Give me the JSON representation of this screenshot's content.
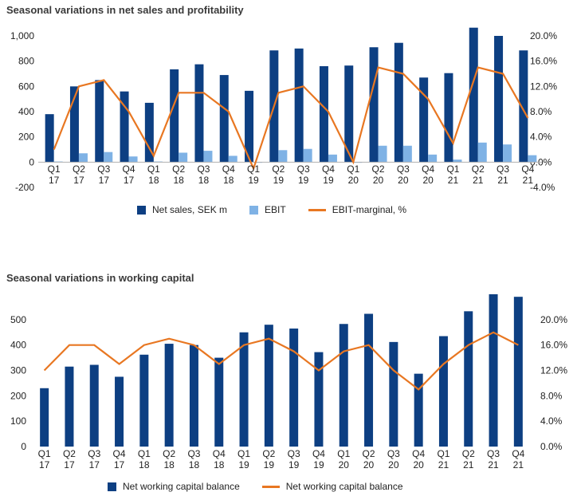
{
  "chart_data": [
    {
      "type": "bar",
      "title": "Seasonal variations in net sales and profitability",
      "categories": [
        "Q1 17",
        "Q2 17",
        "Q3 17",
        "Q4 17",
        "Q1 18",
        "Q2 18",
        "Q3 18",
        "Q4 18",
        "Q1 19",
        "Q2 19",
        "Q3 19",
        "Q4 19",
        "Q1 20",
        "Q2 20",
        "Q3 20",
        "Q4 20",
        "Q1 21",
        "Q2 21",
        "Q3 21",
        "Q4 21"
      ],
      "category_lines": [
        [
          "Q1",
          "17"
        ],
        [
          "Q2",
          "17"
        ],
        [
          "Q3",
          "17"
        ],
        [
          "Q4",
          "17"
        ],
        [
          "Q1",
          "18"
        ],
        [
          "Q2",
          "18"
        ],
        [
          "Q3",
          "18"
        ],
        [
          "Q4",
          "18"
        ],
        [
          "Q1",
          "19"
        ],
        [
          "Q2",
          "19"
        ],
        [
          "Q3",
          "19"
        ],
        [
          "Q4",
          "19"
        ],
        [
          "Q1",
          "20"
        ],
        [
          "Q2",
          "20"
        ],
        [
          "Q3",
          "20"
        ],
        [
          "Q4",
          "20"
        ],
        [
          "Q1",
          "21"
        ],
        [
          "Q2",
          "21"
        ],
        [
          "Q3",
          "21"
        ],
        [
          "Q4",
          "21"
        ]
      ],
      "series": [
        {
          "name": "Net sales, SEK m",
          "kind": "bar",
          "axis": "left",
          "color": "#0d3f82",
          "values": [
            380,
            600,
            650,
            560,
            470,
            735,
            775,
            690,
            565,
            885,
            900,
            760,
            765,
            910,
            945,
            670,
            705,
            1065,
            1000,
            885
          ]
        },
        {
          "name": "EBIT",
          "kind": "bar",
          "axis": "left",
          "color": "#7fb2e5",
          "values": [
            5,
            70,
            80,
            45,
            5,
            75,
            90,
            50,
            -5,
            95,
            105,
            60,
            0,
            130,
            130,
            60,
            20,
            155,
            140,
            55
          ]
        },
        {
          "name": "EBIT-marginal, %",
          "kind": "line",
          "axis": "right",
          "color": "#e87722",
          "values": [
            2.0,
            12.0,
            13.0,
            8.0,
            1.0,
            11.0,
            11.0,
            8.0,
            -1.0,
            11.0,
            12.0,
            8.0,
            0.0,
            15.0,
            14.0,
            10.0,
            3.0,
            15.0,
            14.0,
            7.0
          ]
        }
      ],
      "yleft": {
        "lim": [
          -200,
          1000
        ],
        "ticks": [
          -200,
          0,
          200,
          400,
          600,
          800,
          1000
        ],
        "tick_labels": [
          "-200",
          "0",
          "200",
          "400",
          "600",
          "800",
          "1,000"
        ]
      },
      "yright": {
        "lim": [
          -4,
          20
        ],
        "ticks": [
          -4,
          0,
          4,
          8,
          12,
          16,
          20
        ],
        "tick_labels": [
          "-4.0%",
          "0.0%",
          "4.0%",
          "8.0%",
          "12.0%",
          "16.0%",
          "20.0%"
        ]
      },
      "grid": false,
      "legend_position": "bottom-center"
    },
    {
      "type": "bar",
      "title": "Seasonal variations in working capital",
      "categories": [
        "Q1 17",
        "Q2 17",
        "Q3 17",
        "Q4 17",
        "Q1 18",
        "Q2 18",
        "Q3 18",
        "Q4 18",
        "Q1 19",
        "Q2 19",
        "Q3 19",
        "Q4 19",
        "Q1 20",
        "Q2 20",
        "Q3 20",
        "Q4 20",
        "Q1 21",
        "Q2 21",
        "Q3 21",
        "Q4 21"
      ],
      "category_lines": [
        [
          "Q1",
          "17"
        ],
        [
          "Q2",
          "17"
        ],
        [
          "Q3",
          "17"
        ],
        [
          "Q4",
          "17"
        ],
        [
          "Q1",
          "18"
        ],
        [
          "Q2",
          "18"
        ],
        [
          "Q3",
          "18"
        ],
        [
          "Q4",
          "18"
        ],
        [
          "Q1",
          "19"
        ],
        [
          "Q2",
          "19"
        ],
        [
          "Q3",
          "19"
        ],
        [
          "Q4",
          "19"
        ],
        [
          "Q1",
          "20"
        ],
        [
          "Q2",
          "20"
        ],
        [
          "Q3",
          "20"
        ],
        [
          "Q4",
          "20"
        ],
        [
          "Q1",
          "21"
        ],
        [
          "Q2",
          "21"
        ],
        [
          "Q3",
          "21"
        ],
        [
          "Q4",
          "21"
        ]
      ],
      "series": [
        {
          "name": "Net working capital balance",
          "kind": "bar",
          "axis": "left",
          "color": "#0d3f82",
          "values": [
            230,
            315,
            322,
            275,
            362,
            405,
            400,
            350,
            450,
            480,
            465,
            372,
            483,
            523,
            412,
            287,
            435,
            533,
            600,
            590
          ]
        },
        {
          "name": "Net working capital balance",
          "kind": "line",
          "axis": "right",
          "color": "#e87722",
          "values": [
            12.0,
            16.0,
            16.0,
            13.0,
            16.0,
            17.0,
            16.0,
            13.0,
            16.0,
            17.0,
            15.0,
            12.0,
            15.0,
            16.0,
            12.0,
            9.0,
            13.0,
            16.0,
            18.0,
            16.0
          ]
        }
      ],
      "yleft": {
        "lim": [
          0,
          600
        ],
        "ticks": [
          0,
          100,
          200,
          300,
          400,
          500
        ],
        "tick_labels": [
          "0",
          "100",
          "200",
          "300",
          "400",
          "500"
        ]
      },
      "yright": {
        "lim": [
          0,
          24
        ],
        "ticks": [
          0,
          4,
          8,
          12,
          16,
          20
        ],
        "tick_labels": [
          "0.0%",
          "4.0%",
          "8.0%",
          "12.0%",
          "16.0%",
          "20.0%"
        ]
      },
      "grid": false,
      "legend_position": "bottom-center"
    }
  ]
}
